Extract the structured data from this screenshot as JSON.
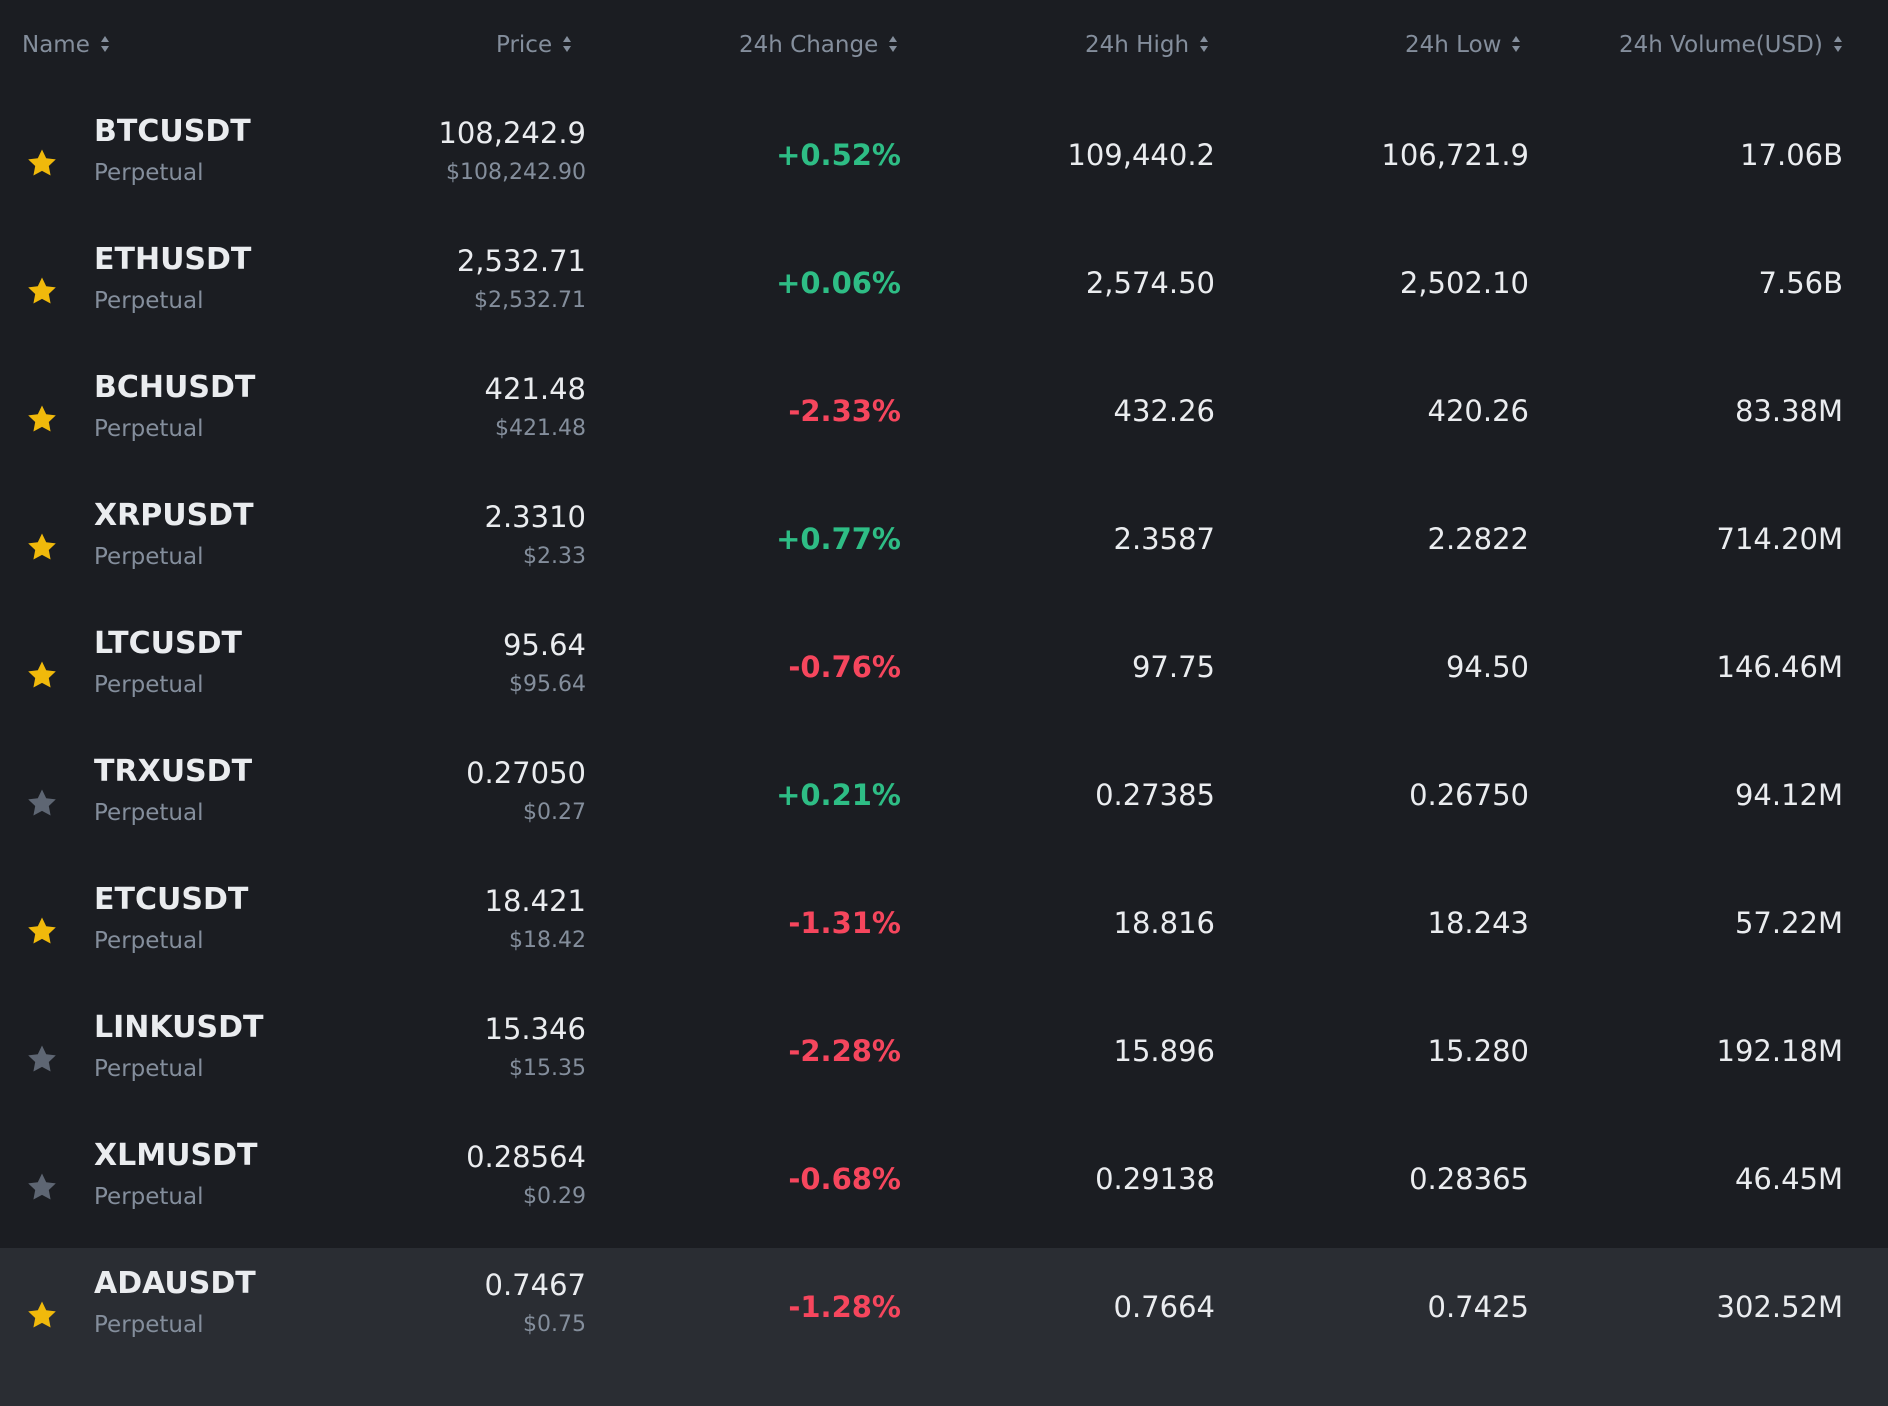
{
  "colors": {
    "background": "#1b1d22",
    "row_highlight": "#2a2d33",
    "header_text": "#848e9c",
    "positive": "#2ebd85",
    "negative": "#f6465d",
    "star_active": "#f0b90b",
    "star_inactive": "#5e6673"
  },
  "header": {
    "name": "Name",
    "price": "Price",
    "change": "24h Change",
    "high": "24h High",
    "low": "24h Low",
    "volume": "24h Volume(USD)",
    "sort_icon": "sort-arrows-icon"
  },
  "rows": [
    {
      "symbol": "BTCUSDT",
      "type": "Perpetual",
      "price": "108,242.9",
      "price_usd": "$108,242.90",
      "change": "+0.52%",
      "direction": "up",
      "high": "109,440.2",
      "low": "106,721.9",
      "volume": "17.06B",
      "favorite": true
    },
    {
      "symbol": "ETHUSDT",
      "type": "Perpetual",
      "price": "2,532.71",
      "price_usd": "$2,532.71",
      "change": "+0.06%",
      "direction": "up",
      "high": "2,574.50",
      "low": "2,502.10",
      "volume": "7.56B",
      "favorite": true
    },
    {
      "symbol": "BCHUSDT",
      "type": "Perpetual",
      "price": "421.48",
      "price_usd": "$421.48",
      "change": "-2.33%",
      "direction": "down",
      "high": "432.26",
      "low": "420.26",
      "volume": "83.38M",
      "favorite": true
    },
    {
      "symbol": "XRPUSDT",
      "type": "Perpetual",
      "price": "2.3310",
      "price_usd": "$2.33",
      "change": "+0.77%",
      "direction": "up",
      "high": "2.3587",
      "low": "2.2822",
      "volume": "714.20M",
      "favorite": true
    },
    {
      "symbol": "LTCUSDT",
      "type": "Perpetual",
      "price": "95.64",
      "price_usd": "$95.64",
      "change": "-0.76%",
      "direction": "down",
      "high": "97.75",
      "low": "94.50",
      "volume": "146.46M",
      "favorite": true
    },
    {
      "symbol": "TRXUSDT",
      "type": "Perpetual",
      "price": "0.27050",
      "price_usd": "$0.27",
      "change": "+0.21%",
      "direction": "up",
      "high": "0.27385",
      "low": "0.26750",
      "volume": "94.12M",
      "favorite": false
    },
    {
      "symbol": "ETCUSDT",
      "type": "Perpetual",
      "price": "18.421",
      "price_usd": "$18.42",
      "change": "-1.31%",
      "direction": "down",
      "high": "18.816",
      "low": "18.243",
      "volume": "57.22M",
      "favorite": true
    },
    {
      "symbol": "LINKUSDT",
      "type": "Perpetual",
      "price": "15.346",
      "price_usd": "$15.35",
      "change": "-2.28%",
      "direction": "down",
      "high": "15.896",
      "low": "15.280",
      "volume": "192.18M",
      "favorite": false
    },
    {
      "symbol": "XLMUSDT",
      "type": "Perpetual",
      "price": "0.28564",
      "price_usd": "$0.29",
      "change": "-0.68%",
      "direction": "down",
      "high": "0.29138",
      "low": "0.28365",
      "volume": "46.45M",
      "favorite": false
    },
    {
      "symbol": "ADAUSDT",
      "type": "Perpetual",
      "price": "0.7467",
      "price_usd": "$0.75",
      "change": "-1.28%",
      "direction": "down",
      "high": "0.7664",
      "low": "0.7425",
      "volume": "302.52M",
      "favorite": true,
      "highlighted": true
    }
  ]
}
